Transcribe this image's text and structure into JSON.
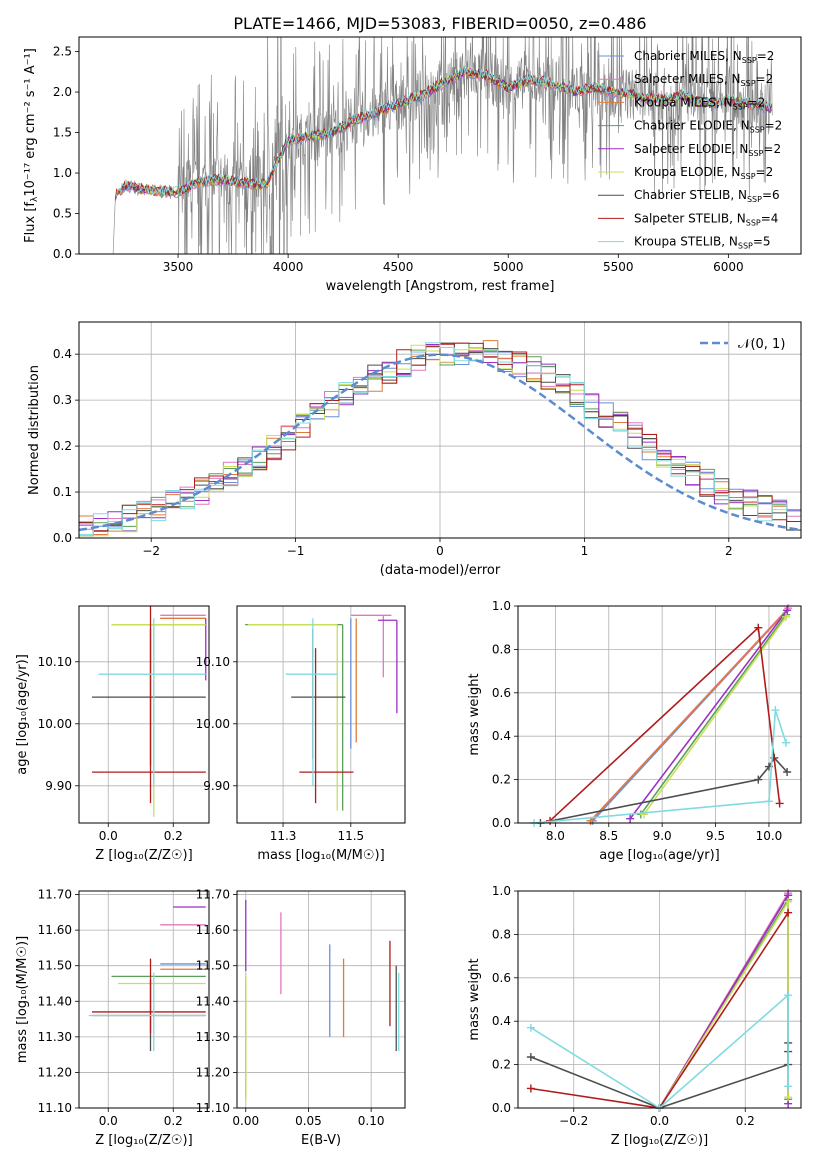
{
  "figure": {
    "title": "PLATE=1466, MJD=53083, FIBERID=0050, z=0.486"
  },
  "series_styles": [
    {
      "name": "Chabrier MILES, N$_{SSP}$=2",
      "label": "Chabrier MILES",
      "nssp": "2",
      "color": "#6b8fd6"
    },
    {
      "name": "Salpeter MILES, N$_{SSP}$=2",
      "label": "Salpeter MILES",
      "nssp": "2",
      "color": "#e377c2"
    },
    {
      "name": "Kroupa MILES, N$_{SSP}$=2",
      "label": "Kroupa MILES",
      "nssp": "2",
      "color": "#e07b39"
    },
    {
      "name": "Chabrier ELODIE, N$_{SSP}$=2",
      "label": "Chabrier ELODIE",
      "nssp": "2",
      "color": "#5aa05a"
    },
    {
      "name": "Salpeter ELODIE, N$_{SSP}$=2",
      "label": "Salpeter ELODIE",
      "nssp": "2",
      "color": "#9b30c4"
    },
    {
      "name": "Kroupa ELODIE, N$_{SSP}$=2",
      "label": "Kroupa ELODIE",
      "nssp": "2",
      "color": "#c8e05a"
    },
    {
      "name": "Chabrier STELIB, N$_{SSP}$=6",
      "label": "Chabrier STELIB",
      "nssp": "6",
      "color": "#4d4d4d"
    },
    {
      "name": "Salpeter STELIB, N$_{SSP}$=4",
      "label": "Salpeter STELIB",
      "nssp": "4",
      "color": "#b01c1c"
    },
    {
      "name": "Kroupa STELIB, N$_{SSP}$=5",
      "label": "Kroupa STELIB",
      "nssp": "5",
      "color": "#7fdbe0"
    }
  ],
  "chart_data": [
    {
      "id": "spectrum",
      "type": "line",
      "xlabel": "wavelength [Angstrom, rest frame]",
      "ylabel_prefix": "Flux [f",
      "ylabel_suffix": "10⁻¹⁷ erg cm⁻² s⁻¹ A⁻¹]",
      "xlim": [
        3050,
        6330
      ],
      "ylim": [
        0,
        2.68
      ],
      "xticks": [
        3500,
        4000,
        4500,
        5000,
        5500,
        6000
      ],
      "yticks": [
        0.0,
        0.5,
        1.0,
        1.5,
        2.0,
        2.5
      ],
      "data_color": "#808080",
      "data_x_range": [
        3205,
        6200
      ],
      "model_continuum": {
        "x": [
          3210,
          3260,
          3300,
          3400,
          3500,
          3600,
          3700,
          3800,
          3900,
          4000,
          4100,
          4200,
          4300,
          4400,
          4500,
          4600,
          4700,
          4800,
          4900,
          5000,
          5100,
          5200,
          5300,
          5400,
          5500,
          5600,
          5700,
          5800,
          5900,
          6000,
          6100,
          6200
        ],
        "y": [
          0.7,
          0.85,
          0.82,
          0.78,
          0.76,
          0.9,
          0.92,
          0.88,
          0.85,
          1.4,
          1.45,
          1.5,
          1.65,
          1.75,
          1.85,
          1.95,
          2.1,
          2.25,
          2.2,
          2.05,
          2.15,
          2.1,
          2.0,
          2.05,
          2.0,
          1.95,
          1.9,
          1.95,
          1.85,
          1.9,
          1.85,
          1.8
        ]
      },
      "legend_position": "top-right"
    },
    {
      "id": "residuals",
      "type": "histogram",
      "xlabel": "(data-model)/error",
      "ylabel": "Normed distribution",
      "xlim": [
        -2.5,
        2.5
      ],
      "ylim": [
        0,
        0.47
      ],
      "xticks": [
        -2,
        -1,
        0,
        1,
        2
      ],
      "yticks": [
        0.0,
        0.1,
        0.2,
        0.3,
        0.4
      ],
      "bin_width": 0.1,
      "reference_curve": {
        "label": "𝒩(0, 1)",
        "mean": 0,
        "sigma": 1,
        "color": "#5b8bd0",
        "style": "dashed"
      },
      "legend_position": "top-right",
      "grid": true
    },
    {
      "id": "age_vs_Z",
      "type": "errorbar",
      "xlabel": "Z [log₁₀(Z/Z☉)]",
      "ylabel": "age  [log₁₀(age/yr)]",
      "xlim": [
        -0.09,
        0.31
      ],
      "ylim": [
        9.84,
        10.19
      ],
      "xticks": [
        0.0,
        0.2
      ],
      "yticks": [
        9.9,
        10.0,
        10.1
      ],
      "grid": true,
      "points": [
        {
          "series": 0,
          "x": 0.24,
          "xerr": [
            0.08,
            0.06
          ],
          "y": 10.17,
          "yerr": [
            0.0,
            0.0
          ]
        },
        {
          "series": 1,
          "x": 0.24,
          "xerr": [
            0.08,
            0.06
          ],
          "y": 10.175,
          "yerr": [
            0.0,
            0.0
          ]
        },
        {
          "series": 2,
          "x": 0.24,
          "xerr": [
            0.08,
            0.06
          ],
          "y": 10.17,
          "yerr": [
            0.0,
            0.0
          ]
        },
        {
          "series": 3,
          "x": 0.14,
          "xerr": [
            0.13,
            0.16
          ],
          "y": 10.16,
          "yerr": [
            0.0,
            0.0
          ]
        },
        {
          "series": 4,
          "x": 0.3,
          "xerr": [
            0.0,
            0.0
          ],
          "y": 10.17,
          "yerr": [
            0.1,
            0.0
          ]
        },
        {
          "series": 5,
          "x": 0.14,
          "xerr": [
            0.13,
            0.16
          ],
          "y": 10.16,
          "yerr": [
            0.31,
            0.0
          ]
        },
        {
          "series": 6,
          "x": 0.13,
          "xerr": [
            0.18,
            0.17
          ],
          "y": 10.043,
          "yerr": [
            0.11,
            0.11
          ]
        },
        {
          "series": 7,
          "x": 0.13,
          "xerr": [
            0.18,
            0.17
          ],
          "y": 9.922,
          "yerr": [
            0.05,
            0.27
          ]
        },
        {
          "series": 8,
          "x": 0.14,
          "xerr": [
            0.17,
            0.16
          ],
          "y": 10.08,
          "yerr": [
            0.18,
            0.09
          ]
        }
      ]
    },
    {
      "id": "age_vs_mass",
      "type": "errorbar",
      "xlabel": "mass [log₁₀(M/M☉)]",
      "ylabel": "",
      "xlim": [
        11.08,
        11.7
      ],
      "ylim": [
        9.84,
        10.19
      ],
      "xticks": [
        11.25,
        11.5
      ],
      "yticks": [
        9.9,
        10.0,
        10.1
      ],
      "grid": true,
      "points": [
        {
          "series": 0,
          "x": 11.5,
          "xerr": [
            0.0,
            0.0
          ],
          "y": 10.17,
          "yerr": [
            0.21,
            0.0
          ]
        },
        {
          "series": 1,
          "x": 11.62,
          "xerr": [
            0.12,
            0.03
          ],
          "y": 10.175,
          "yerr": [
            0.1,
            0.0
          ]
        },
        {
          "series": 2,
          "x": 11.52,
          "xerr": [
            0.0,
            0.0
          ],
          "y": 10.17,
          "yerr": [
            0.2,
            0.0
          ]
        },
        {
          "series": 3,
          "x": 11.47,
          "xerr": [
            0.36,
            0.0
          ],
          "y": 10.16,
          "yerr": [
            0.3,
            0.0
          ]
        },
        {
          "series": 4,
          "x": 11.67,
          "xerr": [
            0.07,
            0.0
          ],
          "y": 10.167,
          "yerr": [
            0.15,
            0.0
          ]
        },
        {
          "series": 5,
          "x": 11.45,
          "xerr": [
            0.33,
            0.0
          ],
          "y": 10.16,
          "yerr": [
            0.3,
            0.0
          ]
        },
        {
          "series": 6,
          "x": 11.36,
          "xerr": [
            0.08,
            0.12
          ],
          "y": 10.043,
          "yerr": [
            0.1,
            0.11
          ]
        },
        {
          "series": 7,
          "x": 11.37,
          "xerr": [
            0.06,
            0.14
          ],
          "y": 9.922,
          "yerr": [
            0.05,
            0.2
          ]
        },
        {
          "series": 8,
          "x": 11.36,
          "xerr": [
            0.1,
            0.09
          ],
          "y": 10.08,
          "yerr": [
            0.18,
            0.09
          ]
        }
      ]
    },
    {
      "id": "weight_vs_age",
      "type": "line",
      "xlabel": "age  [log₁₀(age/yr)]",
      "ylabel": "mass weight",
      "xlim": [
        7.65,
        10.3
      ],
      "ylim": [
        0,
        1.0
      ],
      "xticks": [
        8.0,
        8.5,
        9.0,
        9.5,
        10.0
      ],
      "yticks": [
        0.0,
        0.2,
        0.4,
        0.6,
        0.8,
        1.0
      ],
      "grid": true,
      "series": [
        {
          "series": 0,
          "x": [
            8.35,
            10.17
          ],
          "y": [
            0.01,
            0.98
          ]
        },
        {
          "series": 1,
          "x": [
            8.33,
            10.18
          ],
          "y": [
            0.01,
            0.99
          ]
        },
        {
          "series": 2,
          "x": [
            8.33,
            10.17
          ],
          "y": [
            0.01,
            0.98
          ]
        },
        {
          "series": 3,
          "x": [
            8.8,
            10.16
          ],
          "y": [
            0.04,
            0.96
          ]
        },
        {
          "series": 4,
          "x": [
            8.7,
            10.17
          ],
          "y": [
            0.02,
            0.98
          ]
        },
        {
          "series": 5,
          "x": [
            8.83,
            10.16
          ],
          "y": [
            0.04,
            0.95
          ]
        },
        {
          "series": 6,
          "x": [
            7.86,
            9.9,
            10.0,
            10.05,
            10.17
          ],
          "y": [
            0.0,
            0.2,
            0.26,
            0.3,
            0.235
          ]
        },
        {
          "series": 7,
          "x": [
            7.95,
            9.9,
            10.1
          ],
          "y": [
            0.01,
            0.9,
            0.09
          ]
        },
        {
          "series": 8,
          "x": [
            7.8,
            10.0,
            10.06,
            10.16
          ],
          "y": [
            0.0,
            0.1,
            0.52,
            0.37
          ]
        }
      ]
    },
    {
      "id": "mass_vs_Z",
      "type": "errorbar",
      "xlabel": "Z [log₁₀(Z/Z☉)]",
      "ylabel": "mass [log₁₀(M/M☉)]",
      "xlim": [
        -0.09,
        0.31
      ],
      "ylim": [
        11.1,
        11.71
      ],
      "xticks": [
        0.0,
        0.2
      ],
      "yticks": [
        11.1,
        11.2,
        11.3,
        11.4,
        11.5,
        11.6,
        11.7
      ],
      "grid": true,
      "points": [
        {
          "series": 0,
          "x": 0.23,
          "xerr": [
            0.07,
            0.07
          ],
          "y": 11.505,
          "yerr": [
            0.0,
            0.0
          ]
        },
        {
          "series": 1,
          "x": 0.23,
          "xerr": [
            0.07,
            0.07
          ],
          "y": 11.615,
          "yerr": [
            0.0,
            0.0
          ]
        },
        {
          "series": 2,
          "x": 0.23,
          "xerr": [
            0.07,
            0.07
          ],
          "y": 11.49,
          "yerr": [
            0.0,
            0.0
          ]
        },
        {
          "series": 3,
          "x": 0.16,
          "xerr": [
            0.15,
            0.14
          ],
          "y": 11.47,
          "yerr": [
            0.0,
            0.0
          ]
        },
        {
          "series": 4,
          "x": 0.25,
          "xerr": [
            0.05,
            0.05
          ],
          "y": 11.665,
          "yerr": [
            0.0,
            0.0
          ]
        },
        {
          "series": 5,
          "x": 0.12,
          "xerr": [
            0.09,
            0.18
          ],
          "y": 11.45,
          "yerr": [
            0.0,
            0.0
          ]
        },
        {
          "series": 6,
          "x": 0.13,
          "xerr": [
            0.18,
            0.17
          ],
          "y": 11.36,
          "yerr": [
            0.1,
            0.1
          ]
        },
        {
          "series": 7,
          "x": 0.13,
          "xerr": [
            0.18,
            0.17
          ],
          "y": 11.37,
          "yerr": [
            0.06,
            0.15
          ]
        },
        {
          "series": 8,
          "x": 0.14,
          "xerr": [
            0.2,
            0.16
          ],
          "y": 11.36,
          "yerr": [
            0.1,
            0.12
          ]
        }
      ]
    },
    {
      "id": "mass_vs_EBV",
      "type": "errorbar",
      "xlabel": "E(B-V)",
      "ylabel": "",
      "xlim": [
        -0.007,
        0.127
      ],
      "ylim": [
        11.1,
        11.71
      ],
      "xticks": [
        0.0,
        0.05,
        0.1
      ],
      "yticks": [
        11.1,
        11.2,
        11.3,
        11.4,
        11.5,
        11.6,
        11.7
      ],
      "grid": true,
      "points": [
        {
          "series": 0,
          "x": 0.067,
          "xerr": [
            0.0,
            0.0
          ],
          "y": 11.43,
          "yerr": [
            0.13,
            0.13
          ]
        },
        {
          "series": 1,
          "x": 0.028,
          "xerr": [
            0.0,
            0.0
          ],
          "y": 11.535,
          "yerr": [
            0.115,
            0.115
          ]
        },
        {
          "series": 2,
          "x": 0.078,
          "xerr": [
            0.0,
            0.0
          ],
          "y": 11.41,
          "yerr": [
            0.11,
            0.11
          ]
        },
        {
          "series": 3,
          "x": 0.0,
          "xerr": [
            0.0,
            0.0
          ],
          "y": 11.3,
          "yerr": [
            0.17,
            0.17
          ]
        },
        {
          "series": 4,
          "x": 0.0,
          "xerr": [
            0.0,
            0.0
          ],
          "y": 11.585,
          "yerr": [
            0.1,
            0.1
          ]
        },
        {
          "series": 5,
          "x": 0.0,
          "xerr": [
            0.0,
            0.0
          ],
          "y": 11.3,
          "yerr": [
            0.18,
            0.18
          ]
        },
        {
          "series": 6,
          "x": 0.12,
          "xerr": [
            0.0,
            0.0
          ],
          "y": 11.38,
          "yerr": [
            0.12,
            0.12
          ]
        },
        {
          "series": 7,
          "x": 0.115,
          "xerr": [
            0.0,
            0.0
          ],
          "y": 11.45,
          "yerr": [
            0.12,
            0.12
          ]
        },
        {
          "series": 8,
          "x": 0.122,
          "xerr": [
            0.0,
            0.0
          ],
          "y": 11.37,
          "yerr": [
            0.11,
            0.11
          ]
        }
      ]
    },
    {
      "id": "weight_vs_Z",
      "type": "line",
      "xlabel": "Z [log₁₀(Z/Z☉)]",
      "ylabel": "mass weight",
      "xlim": [
        -0.33,
        0.33
      ],
      "ylim": [
        0,
        1.0
      ],
      "xticks": [
        -0.2,
        0.0,
        0.2
      ],
      "yticks": [
        0.0,
        0.2,
        0.4,
        0.6,
        0.8,
        1.0
      ],
      "grid": true,
      "series": [
        {
          "series": 0,
          "x": [
            0.0,
            0.3
          ],
          "y": [
            0.0,
            0.98
          ]
        },
        {
          "series": 1,
          "x": [
            0.0,
            0.3
          ],
          "y": [
            0.0,
            0.99
          ]
        },
        {
          "series": 2,
          "x": [
            0.0,
            0.3
          ],
          "y": [
            0.0,
            0.98
          ]
        },
        {
          "series": 3,
          "x": [
            0.0,
            0.3,
            0.3
          ],
          "y": [
            0.0,
            0.96,
            0.04
          ]
        },
        {
          "series": 4,
          "x": [
            0.0,
            0.3,
            0.3
          ],
          "y": [
            0.0,
            0.98,
            0.02
          ]
        },
        {
          "series": 5,
          "x": [
            0.0,
            0.3,
            0.3
          ],
          "y": [
            0.0,
            0.95,
            0.05
          ]
        },
        {
          "series": 6,
          "x": [
            -0.3,
            0.0,
            0.3,
            0.3,
            0.3
          ],
          "y": [
            0.235,
            0.0,
            0.2,
            0.26,
            0.3
          ]
        },
        {
          "series": 7,
          "x": [
            -0.3,
            0.0,
            0.3
          ],
          "y": [
            0.09,
            0.0,
            0.9
          ]
        },
        {
          "series": 8,
          "x": [
            -0.3,
            0.0,
            0.3,
            0.3
          ],
          "y": [
            0.37,
            0.0,
            0.52,
            0.1
          ]
        }
      ]
    }
  ]
}
